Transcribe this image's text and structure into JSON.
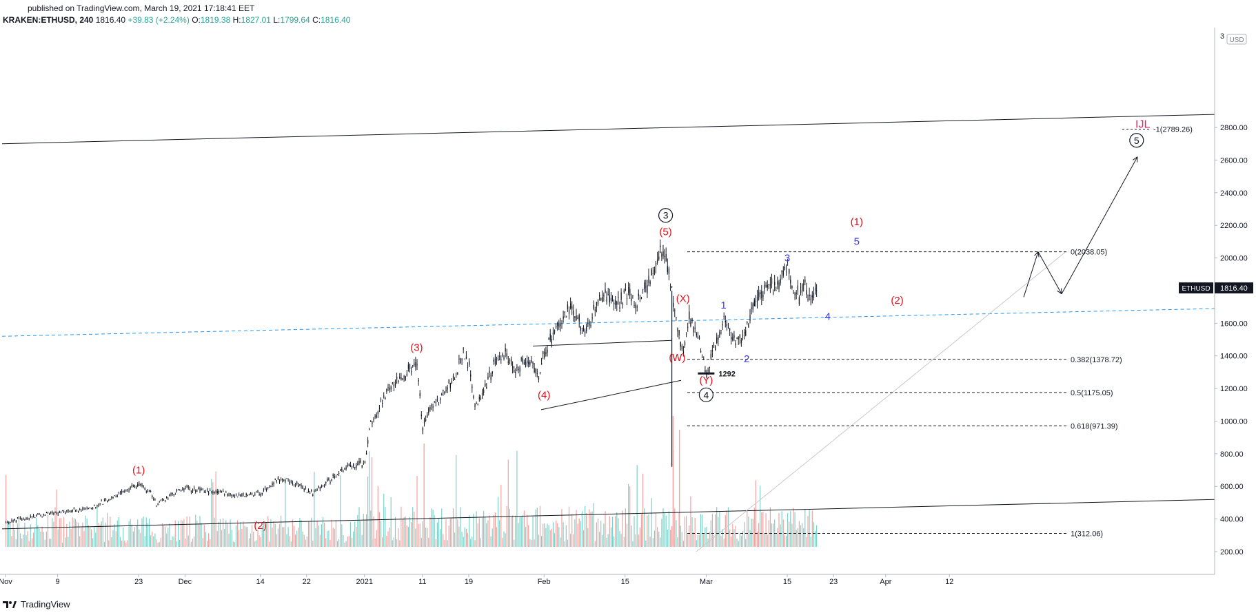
{
  "header": {
    "published": "published on TradingView.com, March 19, 2021 17:18:41 EET",
    "symbol": "KRAKEN:ETHUSD, 240",
    "last": "1816.40",
    "change": "+39.83 (+2.24%)",
    "o_label": "O:",
    "o_value": "1819.38",
    "h_label": "H:",
    "h_value": "1827.01",
    "l_label": "L:",
    "l_value": "1799.64",
    "c_label": "C:",
    "c_value": "1816.40"
  },
  "footer": {
    "brand": "TradingView"
  },
  "colors": {
    "up": "#26a69a",
    "down": "#ef5350",
    "wave_red": "#e0101a",
    "wave_blue": "#3b37e0",
    "channel_blue": "#2196f3",
    "axis": "#787b86",
    "black": "#131722",
    "price_tag": "#131722"
  },
  "chart_data": {
    "type": "candlestick",
    "title": "",
    "currency_label": "USD",
    "price_tag": {
      "label": "ETHUSD",
      "value": "1816.40",
      "price": 1816.4
    },
    "y_ticks": [
      "200.00",
      "400.00",
      "600.00",
      "800.00",
      "1000.00",
      "1200.00",
      "1400.00",
      "1600.00",
      "1800.00",
      "2000.00",
      "2200.00",
      "2400.00",
      "2600.00",
      "2800.00"
    ],
    "y_tick_values": [
      200,
      400,
      600,
      800,
      1000,
      1200,
      1400,
      1600,
      1800,
      2000,
      2200,
      2400,
      2600,
      2800
    ],
    "y_top_partial": "3",
    "x_ticks": [
      {
        "label": "Nov",
        "day": 0
      },
      {
        "label": "9",
        "day": 9
      },
      {
        "label": "23",
        "day": 23
      },
      {
        "label": "Dec",
        "day": 31
      },
      {
        "label": "14",
        "day": 44
      },
      {
        "label": "22",
        "day": 52
      },
      {
        "label": "2021",
        "day": 62
      },
      {
        "label": "11",
        "day": 72
      },
      {
        "label": "19",
        "day": 80
      },
      {
        "label": "Feb",
        "day": 93
      },
      {
        "label": "15",
        "day": 107
      },
      {
        "label": "Mar",
        "day": 121
      },
      {
        "label": "15",
        "day": 135
      },
      {
        "label": "23",
        "day": 143
      },
      {
        "label": "Apr",
        "day": 152
      },
      {
        "label": "12",
        "day": 163
      }
    ],
    "price_path": [
      [
        0,
        380
      ],
      [
        5,
        420
      ],
      [
        9,
        440
      ],
      [
        14,
        460
      ],
      [
        18,
        520
      ],
      [
        22,
        600
      ],
      [
        23,
        620
      ],
      [
        25,
        560
      ],
      [
        26,
        490
      ],
      [
        29,
        560
      ],
      [
        31,
        590
      ],
      [
        34,
        570
      ],
      [
        38,
        560
      ],
      [
        40,
        545
      ],
      [
        44,
        560
      ],
      [
        47,
        640
      ],
      [
        50,
        620
      ],
      [
        53,
        560
      ],
      [
        56,
        640
      ],
      [
        58,
        700
      ],
      [
        60,
        730
      ],
      [
        62,
        740
      ],
      [
        63,
        1000
      ],
      [
        64,
        1050
      ],
      [
        66,
        1200
      ],
      [
        68,
        1260
      ],
      [
        70,
        1330
      ],
      [
        71,
        1350
      ],
      [
        72,
        960
      ],
      [
        73,
        1080
      ],
      [
        75,
        1140
      ],
      [
        77,
        1250
      ],
      [
        79,
        1400
      ],
      [
        80,
        1330
      ],
      [
        81,
        1080
      ],
      [
        83,
        1230
      ],
      [
        85,
        1400
      ],
      [
        86,
        1420
      ],
      [
        88,
        1300
      ],
      [
        90,
        1380
      ],
      [
        92,
        1290
      ],
      [
        93,
        1420
      ],
      [
        95,
        1570
      ],
      [
        97,
        1690
      ],
      [
        99,
        1620
      ],
      [
        100,
        1530
      ],
      [
        102,
        1720
      ],
      [
        104,
        1770
      ],
      [
        106,
        1730
      ],
      [
        107,
        1770
      ],
      [
        109,
        1750
      ],
      [
        111,
        1840
      ],
      [
        112,
        1930
      ],
      [
        113,
        2030
      ],
      [
        114,
        1960
      ],
      [
        115,
        1800
      ],
      [
        116,
        1580
      ],
      [
        117,
        1420
      ],
      [
        118,
        1650
      ],
      [
        119,
        1560
      ],
      [
        120,
        1460
      ],
      [
        121,
        1290
      ],
      [
        122,
        1420
      ],
      [
        123,
        1520
      ],
      [
        124,
        1630
      ],
      [
        125,
        1560
      ],
      [
        126,
        1460
      ],
      [
        127,
        1520
      ],
      [
        128,
        1560
      ],
      [
        129,
        1700
      ],
      [
        130,
        1760
      ],
      [
        131,
        1820
      ],
      [
        132,
        1850
      ],
      [
        133,
        1800
      ],
      [
        134,
        1900
      ],
      [
        135,
        1940
      ],
      [
        136,
        1790
      ],
      [
        137,
        1770
      ],
      [
        138,
        1820
      ],
      [
        139,
        1770
      ],
      [
        140,
        1820
      ]
    ],
    "wick_extremes": [
      {
        "day": 72,
        "low": 920
      },
      {
        "day": 115,
        "low": 720
      },
      {
        "day": 113,
        "high": 2040
      },
      {
        "day": 121,
        "low": 1292
      }
    ],
    "volume_scale": "relative",
    "fib_levels": [
      {
        "label": "0(2038.05)",
        "price": 2038.05
      },
      {
        "label": "0.382(1378.72)",
        "price": 1378.72
      },
      {
        "label": "0.5(1175.05)",
        "price": 1175.05
      },
      {
        "label": "0.618(971.39)",
        "price": 971.39
      },
      {
        "label": "1(312.06)",
        "price": 312.06
      },
      {
        "label": "-1(2789.26)",
        "price": 2789.26
      }
    ],
    "low_marker": {
      "label": "1292",
      "price": 1292,
      "day": 121
    },
    "wave_labels": [
      {
        "text": "(1)",
        "color": "red",
        "day": 23,
        "price": 680
      },
      {
        "text": "(2)",
        "color": "red",
        "day": 44,
        "price": 340
      },
      {
        "text": "(3)",
        "color": "red",
        "day": 71,
        "price": 1430
      },
      {
        "text": "(4)",
        "color": "red",
        "day": 93,
        "price": 1140
      },
      {
        "text": "(5)",
        "color": "red",
        "day": 114,
        "price": 2140
      },
      {
        "text": "3",
        "color": "circle",
        "day": 114,
        "price": 2240
      },
      {
        "text": "(X)",
        "color": "red",
        "day": 117,
        "price": 1730
      },
      {
        "text": "(W)",
        "color": "red",
        "day": 116,
        "price": 1370
      },
      {
        "text": "(Y)",
        "color": "red",
        "day": 121,
        "price": 1230
      },
      {
        "text": "4",
        "color": "circle",
        "day": 121,
        "price": 1140
      },
      {
        "text": "1",
        "color": "blue",
        "day": 124,
        "price": 1690
      },
      {
        "text": "2",
        "color": "blue",
        "day": 128,
        "price": 1360
      },
      {
        "text": "3",
        "color": "blue",
        "day": 135,
        "price": 1980
      },
      {
        "text": "4",
        "color": "blue",
        "day": 142,
        "price": 1620
      },
      {
        "text": "5",
        "color": "blue",
        "day": 147,
        "price": 2080
      },
      {
        "text": "(1)",
        "color": "red",
        "day": 147,
        "price": 2200
      },
      {
        "text": "(2)",
        "color": "red",
        "day": 154,
        "price": 1720
      },
      {
        "text": "5",
        "color": "circle",
        "day": 162,
        "price": 2700
      }
    ],
    "grid": false,
    "legend": "none"
  }
}
